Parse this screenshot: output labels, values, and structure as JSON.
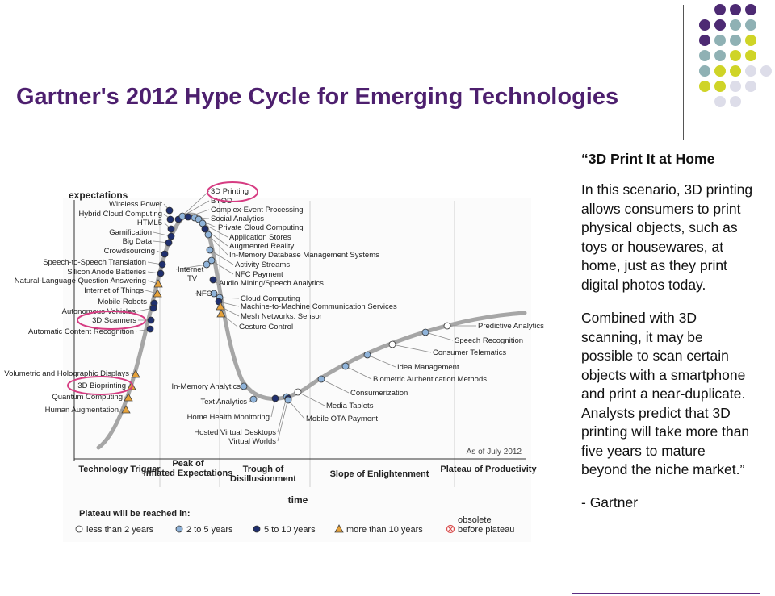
{
  "slide": {
    "title": "Gartner's 2012 Hype Cycle for Emerging Technologies"
  },
  "decor": {
    "colors": {
      "purple": "#4d2a73",
      "teal": "#8fb1b4",
      "yellow": "#cfd427",
      "lavender": "#dddde9"
    }
  },
  "quote": {
    "heading": "“3D Print It at Home",
    "paragraph1": "In this scenario, 3D printing allows consumers to print physical objects, such as toys or housewares, at home, just as they print digital photos today.",
    "paragraph2": "Combined with 3D scanning, it may be possible to scan certain objects with a smartphone and print a near-duplicate. Analysts predict that 3D printing will take more than five years to mature beyond the niche market.”",
    "attribution": "- Gartner"
  },
  "hype_cycle": {
    "y_axis_label": "expectations",
    "x_axis_label": "time",
    "as_of": "As of July 2012",
    "phases": [
      "Technology Trigger",
      "Peak of Inflated Expectations",
      "Trough of Disillusionment",
      "Slope of Enlightenment",
      "Plateau of Productivity"
    ],
    "legend_title": "Plateau will be reached in:",
    "legend": [
      {
        "key": "lt2",
        "label": "less than 2 years"
      },
      {
        "key": "2to5",
        "label": "2 to 5 years"
      },
      {
        "key": "5to10",
        "label": "5 to 10 years"
      },
      {
        "key": "gt10",
        "label": "more than 10 years"
      },
      {
        "key": "obsolete",
        "label": "obsolete before plateau"
      }
    ],
    "marker_colors": {
      "lt2": "#ffffff",
      "2to5": "#8fb3d9",
      "5to10": "#1f2f6e",
      "gt10": "#e6a23a",
      "obsolete": "#d94c4c"
    },
    "highlight_color": "#d63c82",
    "highlighted": [
      "3D Printing",
      "3D Scanners",
      "3D Bioprinting"
    ],
    "technologies": [
      {
        "name": "Wireless Power",
        "plateau": "5to10"
      },
      {
        "name": "Hybrid Cloud Computing",
        "plateau": "5to10"
      },
      {
        "name": "HTML5",
        "plateau": "5to10"
      },
      {
        "name": "Gamification",
        "plateau": "5to10"
      },
      {
        "name": "Big Data",
        "plateau": "5to10"
      },
      {
        "name": "Crowdsourcing",
        "plateau": "5to10"
      },
      {
        "name": "Speech-to-Speech Translation",
        "plateau": "5to10"
      },
      {
        "name": "Silicon Anode Batteries",
        "plateau": "5to10"
      },
      {
        "name": "Natural-Language Question Answering",
        "plateau": "gt10"
      },
      {
        "name": "Internet of Things",
        "plateau": "gt10"
      },
      {
        "name": "Mobile Robots",
        "plateau": "5to10"
      },
      {
        "name": "Autonomous Vehicles",
        "plateau": "5to10"
      },
      {
        "name": "3D Scanners",
        "plateau": "5to10"
      },
      {
        "name": "Automatic Content Recognition",
        "plateau": "5to10"
      },
      {
        "name": "Volumetric and Holographic Displays",
        "plateau": "gt10"
      },
      {
        "name": "3D Bioprinting",
        "plateau": "gt10"
      },
      {
        "name": "Quantum Computing",
        "plateau": "gt10"
      },
      {
        "name": "Human Augmentation",
        "plateau": "gt10"
      },
      {
        "name": "3D Printing",
        "plateau": "5to10"
      },
      {
        "name": "BYOD",
        "plateau": "2to5"
      },
      {
        "name": "Complex-Event Processing",
        "plateau": "5to10"
      },
      {
        "name": "Social Analytics",
        "plateau": "2to5"
      },
      {
        "name": "Private Cloud Computing",
        "plateau": "2to5"
      },
      {
        "name": "Application Stores",
        "plateau": "2to5"
      },
      {
        "name": "Augmented Reality",
        "plateau": "5to10"
      },
      {
        "name": "In-Memory Database Management Systems",
        "plateau": "2to5"
      },
      {
        "name": "Activity Streams",
        "plateau": "2to5"
      },
      {
        "name": "Internet TV",
        "plateau": "2to5"
      },
      {
        "name": "NFC Payment",
        "plateau": "2to5"
      },
      {
        "name": "Audio Mining/Speech Analytics",
        "plateau": "5to10"
      },
      {
        "name": "NFC",
        "plateau": "2to5"
      },
      {
        "name": "Cloud Computing",
        "plateau": "2to5"
      },
      {
        "name": "Machine-to-Machine Communication Services",
        "plateau": "5to10"
      },
      {
        "name": "Mesh Networks: Sensor",
        "plateau": "gt10"
      },
      {
        "name": "Gesture Control",
        "plateau": "gt10"
      },
      {
        "name": "In-Memory Analytics",
        "plateau": "2to5"
      },
      {
        "name": "Text Analytics",
        "plateau": "2to5"
      },
      {
        "name": "Home Health Monitoring",
        "plateau": "5to10"
      },
      {
        "name": "Hosted Virtual Desktops",
        "plateau": "2to5"
      },
      {
        "name": "Virtual Worlds",
        "plateau": "5to10"
      },
      {
        "name": "Media Tablets",
        "plateau": "lt2"
      },
      {
        "name": "Mobile OTA Payment",
        "plateau": "2to5"
      },
      {
        "name": "Consumerization",
        "plateau": "2to5"
      },
      {
        "name": "Biometric Authentication Methods",
        "plateau": "2to5"
      },
      {
        "name": "Idea Management",
        "plateau": "2to5"
      },
      {
        "name": "Consumer Telematics",
        "plateau": "lt2"
      },
      {
        "name": "Speech Recognition",
        "plateau": "2to5"
      },
      {
        "name": "Predictive Analytics",
        "plateau": "lt2"
      }
    ]
  }
}
